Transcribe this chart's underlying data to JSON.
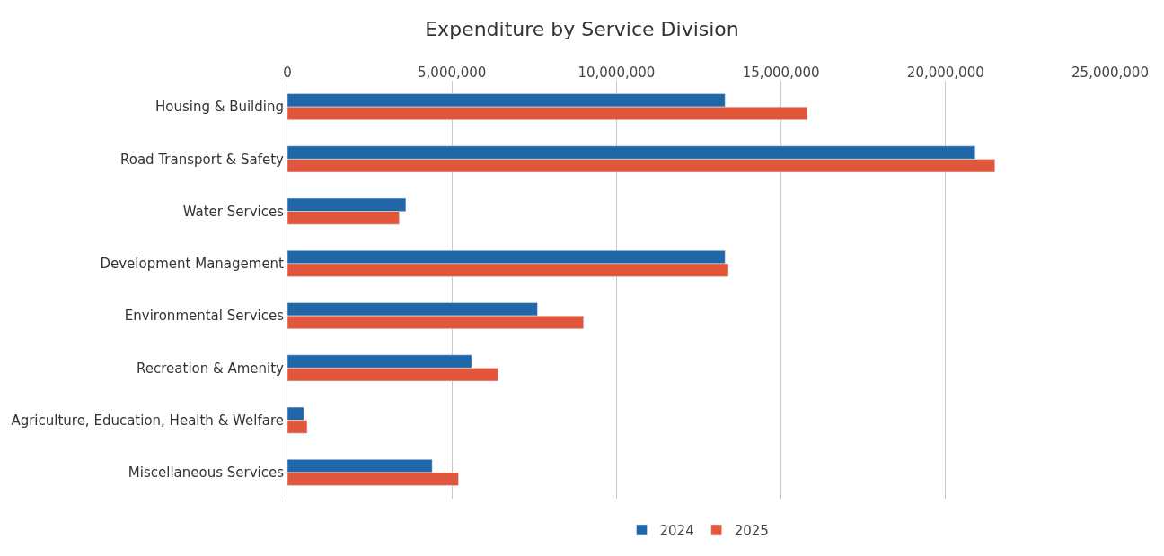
{
  "chart_data": {
    "type": "bar",
    "orientation": "horizontal",
    "title": "Expenditure by Service Division",
    "categories": [
      "Housing & Building",
      "Road Transport & Safety",
      "Water Services",
      "Development Management",
      "Environmental Services",
      "Recreation & Amenity",
      "Agriculture, Education, Health & Welfare",
      "Miscellaneous Services"
    ],
    "series": [
      {
        "name": "2024",
        "color": "#1f67a8",
        "values": [
          13300000,
          20900000,
          3600000,
          13300000,
          7600000,
          5600000,
          500000,
          4400000
        ]
      },
      {
        "name": "2025",
        "color": "#e2573b",
        "values": [
          15800000,
          21500000,
          3400000,
          13400000,
          9000000,
          6400000,
          600000,
          5200000
        ]
      }
    ],
    "xlim": [
      0,
      25000000
    ],
    "xticks": [
      {
        "value": 0,
        "label": "0"
      },
      {
        "value": 5000000,
        "label": "5,000,000"
      },
      {
        "value": 10000000,
        "label": "10,000,000"
      },
      {
        "value": 15000000,
        "label": "15,000,000"
      },
      {
        "value": 20000000,
        "label": "20,000,000"
      },
      {
        "value": 25000000,
        "label": "25,000,000"
      }
    ],
    "grid": "x",
    "legend": "bottom"
  }
}
